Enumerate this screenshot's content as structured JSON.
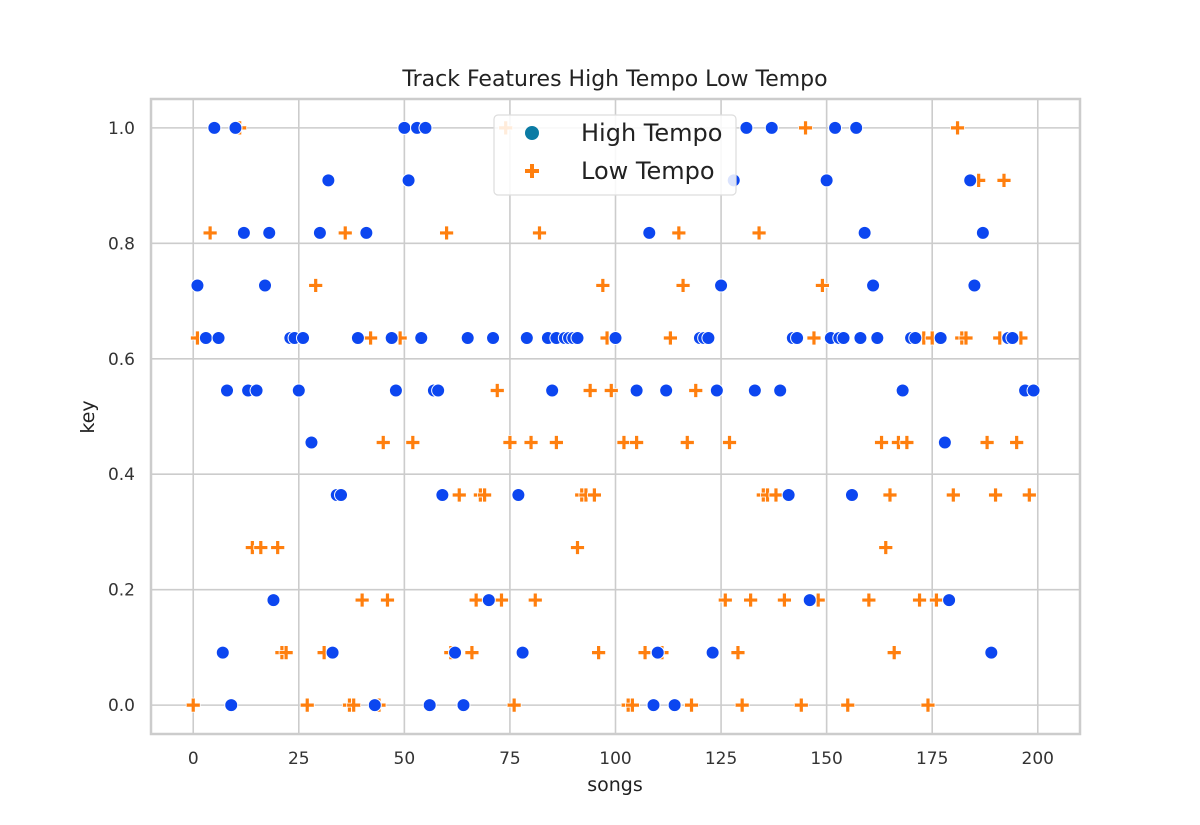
{
  "chart_data": {
    "type": "scatter",
    "title": "Track Features High Tempo Low Tempo",
    "xlabel": "songs",
    "ylabel": "key",
    "xlim": [
      -10,
      210
    ],
    "ylim": [
      -0.05,
      1.05
    ],
    "xticks": [
      0,
      25,
      50,
      75,
      100,
      125,
      150,
      175,
      200
    ],
    "yticks": [
      0.0,
      0.2,
      0.4,
      0.6,
      0.8,
      1.0
    ],
    "xtick_labels": [
      "0",
      "25",
      "50",
      "75",
      "100",
      "125",
      "150",
      "175",
      "200"
    ],
    "ytick_labels": [
      "0.0",
      "0.2",
      "0.4",
      "0.6",
      "0.8",
      "1.0"
    ],
    "grid": true,
    "legend_position": "top-center",
    "colors": {
      "high": "#0c46f0",
      "low": "#ff7f0e",
      "legend_marker": "#0b7ba4",
      "grid": "#cccccc",
      "frame": "#cccccc"
    },
    "series": [
      {
        "name": "High Tempo",
        "marker": "circle",
        "points": [
          [
            1,
            0.727
          ],
          [
            3,
            0.636
          ],
          [
            5,
            1.0
          ],
          [
            6,
            0.636
          ],
          [
            7,
            0.091
          ],
          [
            8,
            0.545
          ],
          [
            9,
            0.0
          ],
          [
            10,
            1.0
          ],
          [
            12,
            0.818
          ],
          [
            13,
            0.545
          ],
          [
            15,
            0.545
          ],
          [
            17,
            0.727
          ],
          [
            18,
            0.818
          ],
          [
            19,
            0.182
          ],
          [
            23,
            0.636
          ],
          [
            24,
            0.636
          ],
          [
            25,
            0.545
          ],
          [
            26,
            0.636
          ],
          [
            28,
            0.455
          ],
          [
            30,
            0.818
          ],
          [
            32,
            0.909
          ],
          [
            33,
            0.091
          ],
          [
            34,
            0.364
          ],
          [
            35,
            0.364
          ],
          [
            39,
            0.636
          ],
          [
            41,
            0.818
          ],
          [
            43,
            0.0
          ],
          [
            47,
            0.636
          ],
          [
            48,
            0.545
          ],
          [
            50,
            1.0
          ],
          [
            51,
            0.909
          ],
          [
            53,
            1.0
          ],
          [
            54,
            0.636
          ],
          [
            55,
            1.0
          ],
          [
            56,
            0.0
          ],
          [
            57,
            0.545
          ],
          [
            58,
            0.545
          ],
          [
            59,
            0.364
          ],
          [
            62,
            0.091
          ],
          [
            64,
            0.0
          ],
          [
            65,
            0.636
          ],
          [
            70,
            0.182
          ],
          [
            71,
            0.636
          ],
          [
            77,
            0.364
          ],
          [
            78,
            0.091
          ],
          [
            79,
            0.636
          ],
          [
            84,
            0.636
          ],
          [
            85,
            0.545
          ],
          [
            86,
            0.636
          ],
          [
            88,
            0.636
          ],
          [
            89,
            0.636
          ],
          [
            90,
            0.636
          ],
          [
            91,
            0.636
          ],
          [
            100,
            0.636
          ],
          [
            105,
            0.545
          ],
          [
            108,
            0.818
          ],
          [
            109,
            0.0
          ],
          [
            110,
            0.091
          ],
          [
            112,
            0.545
          ],
          [
            114,
            0.0
          ],
          [
            120,
            0.636
          ],
          [
            121,
            0.636
          ],
          [
            122,
            0.636
          ],
          [
            123,
            0.091
          ],
          [
            124,
            0.545
          ],
          [
            125,
            0.727
          ],
          [
            128,
            0.909
          ],
          [
            131,
            1.0
          ],
          [
            133,
            0.545
          ],
          [
            137,
            1.0
          ],
          [
            139,
            0.545
          ],
          [
            141,
            0.364
          ],
          [
            142,
            0.636
          ],
          [
            143,
            0.636
          ],
          [
            146,
            0.182
          ],
          [
            150,
            0.909
          ],
          [
            151,
            0.636
          ],
          [
            152,
            1.0
          ],
          [
            153,
            0.636
          ],
          [
            154,
            0.636
          ],
          [
            156,
            0.364
          ],
          [
            157,
            1.0
          ],
          [
            158,
            0.636
          ],
          [
            159,
            0.818
          ],
          [
            161,
            0.727
          ],
          [
            162,
            0.636
          ],
          [
            168,
            0.545
          ],
          [
            170,
            0.636
          ],
          [
            171,
            0.636
          ],
          [
            177,
            0.636
          ],
          [
            178,
            0.455
          ],
          [
            179,
            0.182
          ],
          [
            184,
            0.909
          ],
          [
            185,
            0.727
          ],
          [
            187,
            0.818
          ],
          [
            189,
            0.091
          ],
          [
            193,
            0.636
          ],
          [
            194,
            0.636
          ],
          [
            197,
            0.545
          ],
          [
            199,
            0.545
          ]
        ]
      },
      {
        "name": "Low Tempo",
        "marker": "plus",
        "points": [
          [
            0,
            0.0
          ],
          [
            1,
            0.636
          ],
          [
            4,
            0.818
          ],
          [
            11,
            1.0
          ],
          [
            14,
            0.273
          ],
          [
            16,
            0.273
          ],
          [
            20,
            0.273
          ],
          [
            21,
            0.091
          ],
          [
            22,
            0.091
          ],
          [
            27,
            0.0
          ],
          [
            29,
            0.727
          ],
          [
            31,
            0.091
          ],
          [
            36,
            0.818
          ],
          [
            37,
            0.0
          ],
          [
            38,
            0.0
          ],
          [
            40,
            0.182
          ],
          [
            42,
            0.636
          ],
          [
            44,
            0.0
          ],
          [
            45,
            0.455
          ],
          [
            46,
            0.182
          ],
          [
            49,
            0.636
          ],
          [
            52,
            0.455
          ],
          [
            60,
            0.818
          ],
          [
            61,
            0.091
          ],
          [
            63,
            0.364
          ],
          [
            66,
            0.091
          ],
          [
            67,
            0.182
          ],
          [
            68,
            0.364
          ],
          [
            69,
            0.364
          ],
          [
            72,
            0.545
          ],
          [
            73,
            0.182
          ],
          [
            74,
            1.0
          ],
          [
            75,
            0.455
          ],
          [
            76,
            0.0
          ],
          [
            80,
            0.455
          ],
          [
            81,
            0.182
          ],
          [
            82,
            0.818
          ],
          [
            86,
            0.455
          ],
          [
            91,
            0.273
          ],
          [
            92,
            0.364
          ],
          [
            93,
            0.364
          ],
          [
            94,
            0.545
          ],
          [
            95,
            0.364
          ],
          [
            96,
            0.091
          ],
          [
            97,
            0.727
          ],
          [
            98,
            0.636
          ],
          [
            99,
            0.545
          ],
          [
            102,
            0.455
          ],
          [
            103,
            0.0
          ],
          [
            104,
            0.0
          ],
          [
            105,
            0.455
          ],
          [
            107,
            0.091
          ],
          [
            110,
            0.091
          ],
          [
            111,
            0.091
          ],
          [
            113,
            0.636
          ],
          [
            115,
            0.818
          ],
          [
            116,
            0.727
          ],
          [
            117,
            0.455
          ],
          [
            118,
            0.0
          ],
          [
            119,
            0.545
          ],
          [
            126,
            0.182
          ],
          [
            127,
            0.455
          ],
          [
            129,
            0.091
          ],
          [
            130,
            0.0
          ],
          [
            132,
            0.182
          ],
          [
            134,
            0.818
          ],
          [
            135,
            0.364
          ],
          [
            136,
            0.364
          ],
          [
            138,
            0.364
          ],
          [
            140,
            0.182
          ],
          [
            144,
            0.0
          ],
          [
            145,
            1.0
          ],
          [
            147,
            0.636
          ],
          [
            148,
            0.182
          ],
          [
            149,
            0.727
          ],
          [
            155,
            0.0
          ],
          [
            160,
            0.182
          ],
          [
            163,
            0.455
          ],
          [
            164,
            0.273
          ],
          [
            165,
            0.364
          ],
          [
            166,
            0.091
          ],
          [
            167,
            0.455
          ],
          [
            169,
            0.455
          ],
          [
            172,
            0.182
          ],
          [
            173,
            0.636
          ],
          [
            174,
            0.0
          ],
          [
            175,
            0.636
          ],
          [
            176,
            0.182
          ],
          [
            180,
            0.364
          ],
          [
            181,
            1.0
          ],
          [
            182,
            0.636
          ],
          [
            183,
            0.636
          ],
          [
            186,
            0.909
          ],
          [
            188,
            0.455
          ],
          [
            190,
            0.364
          ],
          [
            191,
            0.636
          ],
          [
            192,
            0.909
          ],
          [
            195,
            0.455
          ],
          [
            196,
            0.636
          ],
          [
            198,
            0.364
          ]
        ]
      }
    ]
  }
}
